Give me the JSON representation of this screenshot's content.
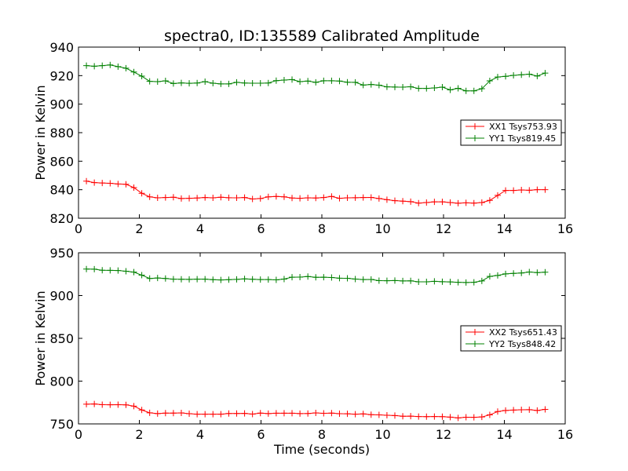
{
  "chart_data": [
    {
      "type": "line",
      "title": "spectra0, ID:135589 Calibrated Amplitude",
      "xlabel": "",
      "ylabel": "Power in Kelvin",
      "xlim": [
        0,
        16
      ],
      "ylim": [
        820,
        940
      ],
      "xticks": [
        0,
        2,
        4,
        6,
        8,
        10,
        12,
        14,
        16
      ],
      "yticks": [
        820,
        840,
        860,
        880,
        900,
        920,
        940
      ],
      "legend_position": "center-right",
      "x": [
        0.26,
        0.52,
        0.78,
        1.04,
        1.3,
        1.56,
        1.82,
        2.08,
        2.34,
        2.6,
        2.86,
        3.12,
        3.38,
        3.64,
        3.9,
        4.16,
        4.42,
        4.68,
        4.94,
        5.2,
        5.46,
        5.72,
        5.98,
        6.24,
        6.5,
        6.76,
        7.02,
        7.28,
        7.54,
        7.8,
        8.06,
        8.32,
        8.58,
        8.84,
        9.1,
        9.36,
        9.62,
        9.88,
        10.14,
        10.4,
        10.66,
        10.92,
        11.18,
        11.44,
        11.7,
        11.96,
        12.22,
        12.48,
        12.74,
        13.0,
        13.26,
        13.52,
        13.78,
        14.04,
        14.3,
        14.56,
        14.82,
        15.08,
        15.34
      ],
      "series": [
        {
          "name": "XX1 Tsys753.93",
          "color": "#ff0000",
          "values": [
            846,
            845,
            844.7,
            844.5,
            844,
            843.8,
            841.5,
            837.5,
            835,
            834.3,
            834.5,
            834.7,
            833.8,
            834,
            834.2,
            834.5,
            834.3,
            834.7,
            834.4,
            834.3,
            834.5,
            833.5,
            833.8,
            835,
            835.3,
            835,
            834.2,
            834,
            834.3,
            834.2,
            834.5,
            835.3,
            834,
            834.3,
            834.4,
            834.5,
            834.6,
            833.8,
            833,
            832.3,
            832,
            831.6,
            830.6,
            831,
            831.5,
            831.5,
            831,
            830.5,
            830.8,
            830.6,
            831,
            832.5,
            836,
            839.5,
            839.5,
            839.8,
            839.6,
            840,
            840
          ]
        },
        {
          "name": "YY1 Tsys819.45",
          "color": "#008000",
          "values": [
            927,
            926.6,
            927,
            927.5,
            926.3,
            925.2,
            922.5,
            919.6,
            916,
            915.8,
            916.3,
            914.5,
            914.9,
            914.6,
            914.8,
            915.8,
            914.7,
            914.2,
            914.2,
            915.3,
            914.8,
            914.7,
            914.7,
            914.8,
            916.5,
            916.9,
            917.2,
            915.8,
            916.2,
            915.3,
            916.4,
            916.4,
            916.2,
            915.4,
            915.3,
            913.4,
            913.8,
            913.3,
            912.1,
            912,
            911.9,
            912.2,
            911,
            911,
            911.4,
            911.9,
            910,
            911.1,
            909.3,
            909.3,
            910.8,
            916.3,
            919,
            919.5,
            920.2,
            920.6,
            921,
            919.7,
            921.8
          ]
        }
      ]
    },
    {
      "type": "line",
      "title": "",
      "xlabel": "Time (seconds)",
      "ylabel": "Power in Kelvin",
      "xlim": [
        0,
        16
      ],
      "ylim": [
        750,
        950
      ],
      "xticks": [
        0,
        2,
        4,
        6,
        8,
        10,
        12,
        14,
        16
      ],
      "yticks": [
        750,
        800,
        850,
        900,
        950
      ],
      "legend_position": "center-right",
      "x": [
        0.26,
        0.52,
        0.78,
        1.04,
        1.3,
        1.56,
        1.82,
        2.08,
        2.34,
        2.6,
        2.86,
        3.12,
        3.38,
        3.64,
        3.9,
        4.16,
        4.42,
        4.68,
        4.94,
        5.2,
        5.46,
        5.72,
        5.98,
        6.24,
        6.5,
        6.76,
        7.02,
        7.28,
        7.54,
        7.8,
        8.06,
        8.32,
        8.58,
        8.84,
        9.1,
        9.36,
        9.62,
        9.88,
        10.14,
        10.4,
        10.66,
        10.92,
        11.18,
        11.44,
        11.7,
        11.96,
        12.22,
        12.48,
        12.74,
        13.0,
        13.26,
        13.52,
        13.78,
        14.04,
        14.3,
        14.56,
        14.82,
        15.08,
        15.34
      ],
      "series": [
        {
          "name": "XX2 Tsys651.43",
          "color": "#ff0000",
          "values": [
            773,
            773.3,
            772.5,
            772.4,
            772.5,
            772.3,
            770.8,
            766.3,
            763,
            762,
            762.6,
            762.6,
            762.8,
            761.9,
            761.4,
            761.4,
            761.3,
            761.4,
            762.2,
            762.2,
            762.3,
            761.5,
            762.6,
            762,
            762.5,
            762.5,
            762.5,
            762,
            762.2,
            762.8,
            762.4,
            762.6,
            761.9,
            761.8,
            761.4,
            761.7,
            760.8,
            760.6,
            760.1,
            759.7,
            759,
            759.1,
            758.6,
            758.5,
            758.6,
            758.5,
            757.9,
            757,
            757.8,
            757.7,
            758.1,
            760.6,
            764.4,
            765.7,
            766.2,
            766.5,
            766.6,
            765.7,
            767
          ]
        },
        {
          "name": "YY2 Tsys848.42",
          "color": "#008000",
          "values": [
            931,
            930.8,
            929.6,
            929.5,
            929.3,
            928.4,
            927.4,
            923.8,
            920,
            920.5,
            920,
            919.2,
            919,
            918.9,
            919.2,
            919.1,
            918.6,
            918.2,
            918.6,
            918.9,
            919.5,
            919,
            918.7,
            918.7,
            918.4,
            919.3,
            921.5,
            921.6,
            922.3,
            921.3,
            921.4,
            921.1,
            920.3,
            920.2,
            919.3,
            918.7,
            918.8,
            917.4,
            917.3,
            917.5,
            917.1,
            917.2,
            916.1,
            916.1,
            916.6,
            916.2,
            915.9,
            915.5,
            915.2,
            915.5,
            917.1,
            922.4,
            923.5,
            925.3,
            925.9,
            926.4,
            927.5,
            926.8,
            927.3
          ]
        }
      ]
    }
  ]
}
